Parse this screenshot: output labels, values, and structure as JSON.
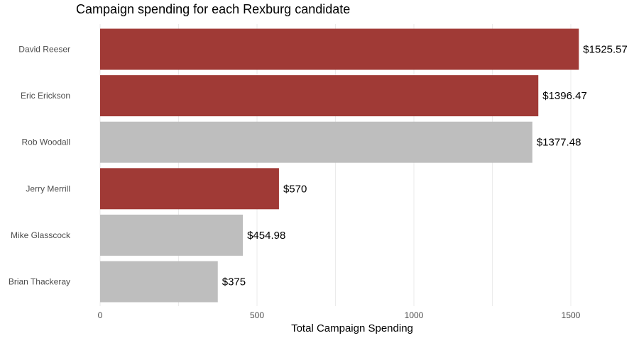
{
  "chart_data": {
    "type": "bar",
    "orientation": "horizontal",
    "title": "Campaign spending for each Rexburg candidate",
    "xlabel": "Total Campaign Spending",
    "ylabel": "",
    "xlim": [
      0,
      1550
    ],
    "x_ticks": [
      0,
      500,
      1000,
      1500
    ],
    "grid": "vertical",
    "legend": "none",
    "categories": [
      "David Reeser",
      "Eric Erickson",
      "Rob Woodall",
      "Jerry Merrill",
      "Mike Glasscock",
      "Brian Thackeray"
    ],
    "values": [
      1525.57,
      1396.47,
      1377.48,
      570,
      454.98,
      375
    ],
    "data_labels": [
      "$1525.57",
      "$1396.47",
      "$1377.48",
      "$570",
      "$454.98",
      "$375"
    ],
    "highlighted": [
      true,
      true,
      false,
      true,
      false,
      false
    ],
    "colors": {
      "highlight": "#a03a36",
      "default": "#bebebe"
    }
  }
}
